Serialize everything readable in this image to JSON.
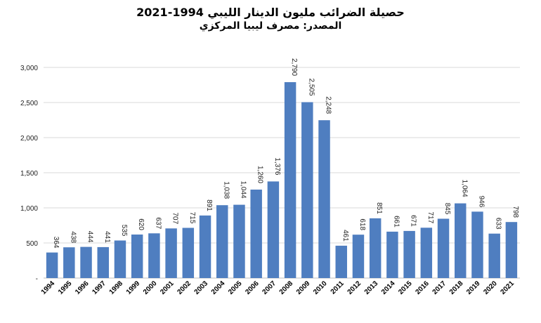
{
  "chart_data": {
    "type": "bar",
    "title": "حصيلة الضرائب مليون الدينار الليبي 1994-2021",
    "subtitle": "المصدر: مصرف ليبيا المركزي",
    "categories": [
      "1994",
      "1995",
      "1996",
      "1997",
      "1998",
      "1999",
      "2000",
      "2001",
      "2002",
      "2003",
      "2004",
      "2005",
      "2006",
      "2007",
      "2008",
      "2009",
      "2010",
      "2011",
      "2012",
      "2013",
      "2014",
      "2015",
      "2016",
      "2017",
      "2018",
      "2019",
      "2020",
      "2021"
    ],
    "values": [
      364,
      438,
      444,
      441,
      535,
      620,
      637,
      707,
      715,
      891,
      1038,
      1044,
      1260,
      1376,
      2790,
      2505,
      2248,
      461,
      618,
      851,
      661,
      671,
      717,
      845,
      1064,
      946,
      633,
      798
    ],
    "data_labels": [
      "364",
      "438",
      "444",
      "441",
      "535",
      "620",
      "637",
      "707",
      "715",
      "891",
      "1,038",
      "1,044",
      "1,260",
      "1,376",
      "2,790",
      "2,505",
      "2,248",
      "461",
      "618",
      "851",
      "661",
      "671",
      "717",
      "845",
      "1,064",
      "946",
      "633",
      "798"
    ],
    "y_ticks": [
      "-",
      "500",
      "1,000",
      "1,500",
      "2,000",
      "2,500",
      "3,000"
    ],
    "y_tick_values": [
      0,
      500,
      1000,
      1500,
      2000,
      2500,
      3000
    ],
    "ylim": [
      0,
      3000
    ],
    "grid": true,
    "bar_color": "#4f7ec0",
    "xlabel": "",
    "ylabel": ""
  }
}
